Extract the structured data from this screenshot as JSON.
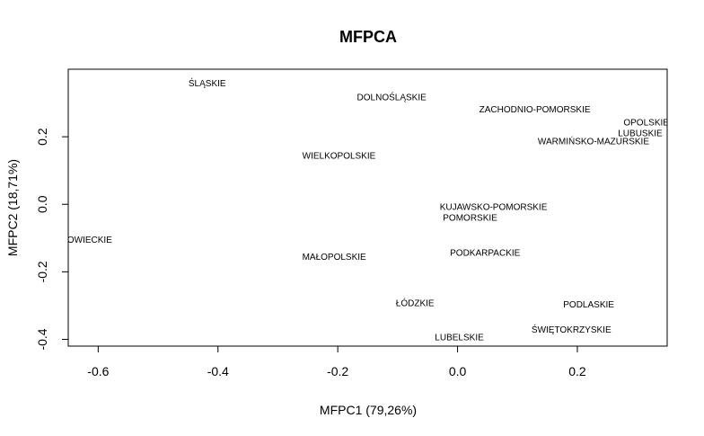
{
  "chart_data": {
    "type": "scatter",
    "title": "MFPCA",
    "xlabel": "MFPC1 (79,26%)",
    "ylabel": "MFPC2 (18,71%)",
    "xlim": [
      -0.65,
      0.35
    ],
    "ylim": [
      -0.42,
      0.4
    ],
    "xticks": [
      -0.6,
      -0.4,
      -0.2,
      0.0,
      0.2
    ],
    "xtick_labels": [
      "-0.6",
      "-0.4",
      "-0.2",
      "0.0",
      "0.2"
    ],
    "yticks": [
      -0.4,
      -0.2,
      0.0,
      0.2
    ],
    "ytick_labels": [
      "-0.4",
      "-0.2",
      "0.0",
      "0.2"
    ],
    "grid": false,
    "points": [
      {
        "label": "ŚLĄSKIE",
        "x": -0.418,
        "y": 0.359
      },
      {
        "label": "DOLNOŚLĄSKIE",
        "x": -0.11,
        "y": 0.317
      },
      {
        "label": "ZACHODNIO-POMORSKIE",
        "x": 0.129,
        "y": 0.281
      },
      {
        "label": "OPOLSKIE",
        "x": 0.315,
        "y": 0.243
      },
      {
        "label": "LUBUSKIE",
        "x": 0.305,
        "y": 0.211
      },
      {
        "label": "WARMIŃSKO-MAZURSKIE",
        "x": 0.227,
        "y": 0.187
      },
      {
        "label": "WIELKOPOLSKIE",
        "x": -0.198,
        "y": 0.145
      },
      {
        "label": "KUJAWSKO-POMORSKIE",
        "x": 0.06,
        "y": -0.007
      },
      {
        "label": "POMORSKIE",
        "x": 0.021,
        "y": -0.039
      },
      {
        "label": "MAZOWIECKIE",
        "x": -0.63,
        "y": -0.104
      },
      {
        "label": "PODKARPACKIE",
        "x": 0.046,
        "y": -0.143
      },
      {
        "label": "MAŁOPOLSKIE",
        "x": -0.206,
        "y": -0.155
      },
      {
        "label": "ŁÓDZKIE",
        "x": -0.071,
        "y": -0.292
      },
      {
        "label": "PODLASKIE",
        "x": 0.219,
        "y": -0.296
      },
      {
        "label": "ŚWIĘTOKRZYSKIE",
        "x": 0.19,
        "y": -0.371
      },
      {
        "label": "LUBELSKIE",
        "x": 0.003,
        "y": -0.393
      }
    ]
  }
}
